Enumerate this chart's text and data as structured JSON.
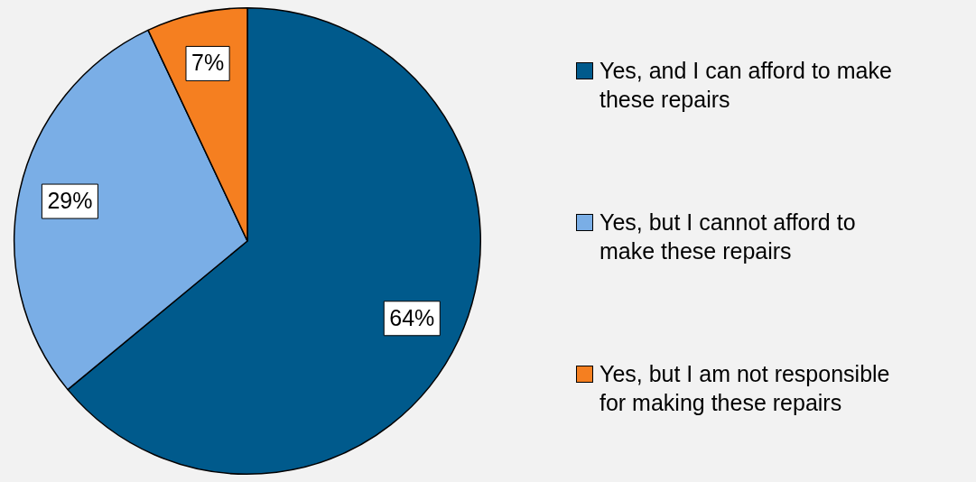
{
  "chart_data": {
    "type": "pie",
    "categories": [
      "Yes, and I can afford to make these repairs",
      "Yes, but I cannot afford to make these repairs",
      "Yes, but I am not responsible for making these repairs"
    ],
    "values": [
      64,
      29,
      7
    ],
    "colors": [
      "#005a8c",
      "#7aaee6",
      "#f57f20"
    ],
    "value_labels": [
      "64%",
      "29%",
      "7%"
    ],
    "legend": "right"
  }
}
